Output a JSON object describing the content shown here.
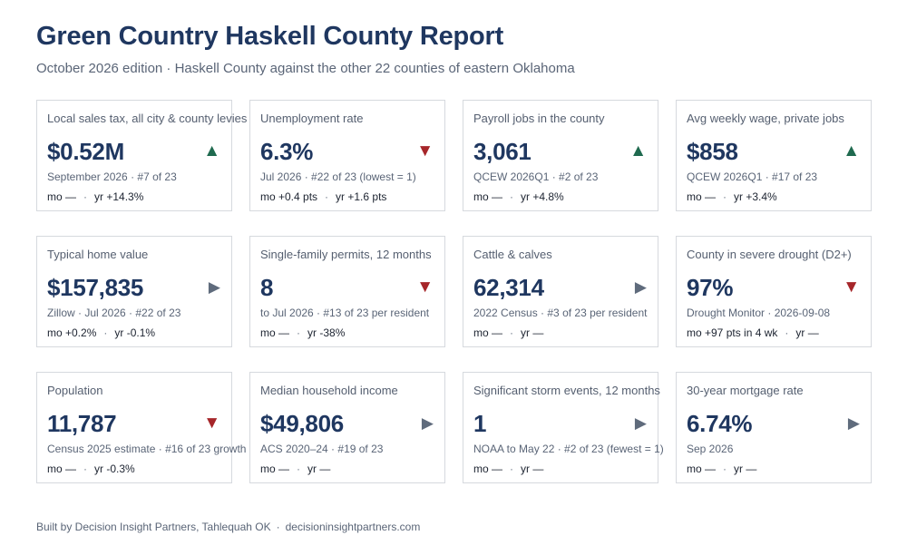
{
  "header": {
    "title": "Green Country Haskell County Report",
    "subtitle": "October 2026 edition · Haskell County against the other 22 counties of eastern Oklahoma"
  },
  "cards": [
    {
      "label": "Local sales tax, all city & county levies",
      "value": "$0.52M",
      "trend": "up",
      "trend_icon": "triangle-up-icon",
      "meta": "September 2026 · #7 of 23",
      "mo": "mo —",
      "yr": "yr +14.3%"
    },
    {
      "label": "Unemployment rate",
      "value": "6.3%",
      "trend": "down",
      "trend_icon": "triangle-down-icon",
      "meta": "Jul 2026 · #22 of 23 (lowest = 1)",
      "mo": "mo +0.4 pts",
      "yr": "yr +1.6 pts"
    },
    {
      "label": "Payroll jobs in the county",
      "value": "3,061",
      "trend": "up",
      "trend_icon": "triangle-up-icon",
      "meta": "QCEW 2026Q1 · #2 of 23",
      "mo": "mo —",
      "yr": "yr +4.8%"
    },
    {
      "label": "Avg weekly wage, private jobs",
      "value": "$858",
      "trend": "up",
      "trend_icon": "triangle-up-icon",
      "meta": "QCEW 2026Q1 · #17 of 23",
      "mo": "mo —",
      "yr": "yr +3.4%"
    },
    {
      "label": "Typical home value",
      "value": "$157,835",
      "trend": "flat",
      "trend_icon": "triangle-right-icon",
      "meta": "Zillow · Jul 2026 · #22 of 23",
      "mo": "mo +0.2%",
      "yr": "yr -0.1%"
    },
    {
      "label": "Single-family permits, 12 months",
      "value": "8",
      "trend": "down",
      "trend_icon": "triangle-down-icon",
      "meta": "to Jul 2026 · #13 of 23 per resident",
      "mo": "mo —",
      "yr": "yr -38%"
    },
    {
      "label": "Cattle & calves",
      "value": "62,314",
      "trend": "flat",
      "trend_icon": "triangle-right-icon",
      "meta": "2022 Census · #3 of 23 per resident",
      "mo": "mo —",
      "yr": "yr —"
    },
    {
      "label": "County in severe drought (D2+)",
      "value": "97%",
      "trend": "down",
      "trend_icon": "triangle-down-icon",
      "meta": "Drought Monitor · 2026-09-08",
      "mo": "mo +97 pts in 4 wk",
      "yr": "yr —"
    },
    {
      "label": "Population",
      "value": "11,787",
      "trend": "down",
      "trend_icon": "triangle-down-icon",
      "meta": "Census 2025 estimate · #16 of 23 growth",
      "mo": "mo —",
      "yr": "yr -0.3%"
    },
    {
      "label": "Median household income",
      "value": "$49,806",
      "trend": "flat",
      "trend_icon": "triangle-right-icon",
      "meta": "ACS 2020–24 · #19 of 23",
      "mo": "mo —",
      "yr": "yr —"
    },
    {
      "label": "Significant storm events, 12 months",
      "value": "1",
      "trend": "flat",
      "trend_icon": "triangle-right-icon",
      "meta": "NOAA to May 22 · #2 of 23 (fewest = 1)",
      "mo": "mo —",
      "yr": "yr —"
    },
    {
      "label": "30-year mortgage rate",
      "value": "6.74%",
      "trend": "flat",
      "trend_icon": "triangle-right-icon",
      "meta": "Sep 2026",
      "mo": "mo —",
      "yr": "yr —"
    }
  ],
  "change_separator": "·",
  "footer": {
    "credit": "Built by Decision Insight Partners, Tahlequah OK",
    "separator": "·",
    "website": "decisioninsightpartners.com"
  },
  "colors": {
    "trend_up": "#1f6a4f",
    "trend_down": "#a6262a",
    "trend_flat": "#5f6b7c",
    "title": "#1f3760"
  }
}
